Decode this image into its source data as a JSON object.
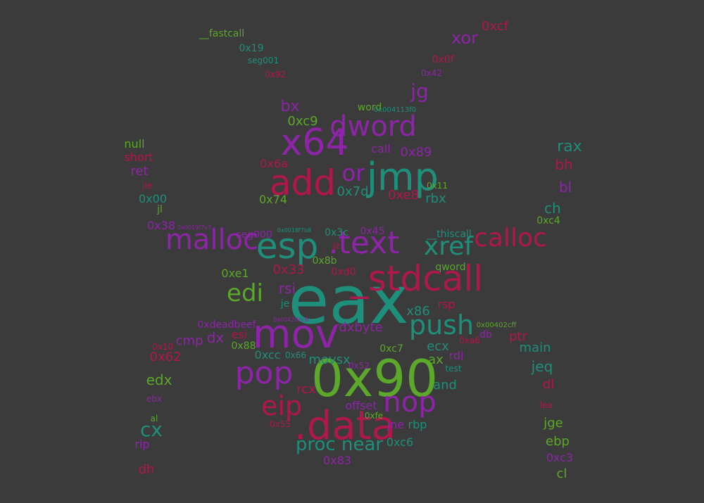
{
  "colors": {
    "background": "#3b3b3b",
    "green": "#5ba82a",
    "teal": "#1e8f7a",
    "purple": "#8e24a8",
    "crimson": "#b0174a"
  },
  "words": [
    {
      "text": "eax",
      "color": "teal"
    },
    {
      "text": "0x90",
      "color": "green"
    },
    {
      "text": "_stdcall",
      "color": "crimson"
    },
    {
      "text": "esp",
      "color": "teal"
    },
    {
      "text": ".text",
      "color": "purple"
    },
    {
      "text": "jmp",
      "color": "teal"
    },
    {
      "text": "mov",
      "color": "purple"
    },
    {
      "text": ".data",
      "color": "crimson"
    },
    {
      "text": "x64",
      "color": "purple"
    },
    {
      "text": "add",
      "color": "crimson"
    },
    {
      "text": "dword",
      "color": "purple"
    },
    {
      "text": "malloc",
      "color": "purple"
    },
    {
      "text": "xref",
      "color": "teal"
    },
    {
      "text": "calloc",
      "color": "crimson"
    },
    {
      "text": "push",
      "color": "teal"
    },
    {
      "text": "pop",
      "color": "purple"
    },
    {
      "text": "nop",
      "color": "purple"
    },
    {
      "text": "eip",
      "color": "crimson"
    },
    {
      "text": "edi",
      "color": "green"
    },
    {
      "text": "or",
      "color": "purple"
    },
    {
      "text": "proc near",
      "color": "teal"
    },
    {
      "text": "rdxbyte",
      "color": "purple"
    },
    {
      "text": "xor",
      "color": "purple"
    },
    {
      "text": "0xcf",
      "color": "crimson"
    },
    {
      "text": "jg",
      "color": "purple"
    },
    {
      "text": "bx",
      "color": "purple"
    },
    {
      "text": "0xc9",
      "color": "green"
    },
    {
      "text": "word",
      "color": "green"
    },
    {
      "text": "0x004113f0",
      "color": "teal"
    },
    {
      "text": "call",
      "color": "purple"
    },
    {
      "text": "0x89",
      "color": "purple"
    },
    {
      "text": "0x6a",
      "color": "crimson"
    },
    {
      "text": "0x7d",
      "color": "teal"
    },
    {
      "text": "0xe8",
      "color": "crimson"
    },
    {
      "text": "0x11",
      "color": "green"
    },
    {
      "text": "rbx",
      "color": "teal"
    },
    {
      "text": "0x74",
      "color": "green"
    },
    {
      "text": "rax",
      "color": "teal"
    },
    {
      "text": "bh",
      "color": "crimson"
    },
    {
      "text": "bl",
      "color": "purple"
    },
    {
      "text": "ch",
      "color": "teal"
    },
    {
      "text": "0xc4",
      "color": "green"
    },
    {
      "text": "null",
      "color": "green"
    },
    {
      "text": "short",
      "color": "crimson"
    },
    {
      "text": "ret",
      "color": "purple"
    },
    {
      "text": "jle",
      "color": "crimson"
    },
    {
      "text": "0x00",
      "color": "teal"
    },
    {
      "text": "jl",
      "color": "green"
    },
    {
      "text": "0x38",
      "color": "purple"
    },
    {
      "text": "0x0019f7e7",
      "color": "purple"
    },
    {
      "text": "seg000",
      "color": "purple"
    },
    {
      "text": "0x0018f7b8",
      "color": "teal"
    },
    {
      "text": "0x3c",
      "color": "teal"
    },
    {
      "text": "0x45",
      "color": "purple"
    },
    {
      "text": "__thiscall",
      "color": "teal"
    },
    {
      "text": "jz",
      "color": "crimson"
    },
    {
      "text": "0x8b",
      "color": "green"
    },
    {
      "text": "0xd0",
      "color": "crimson"
    },
    {
      "text": "qword",
      "color": "green"
    },
    {
      "text": "0xe1",
      "color": "green"
    },
    {
      "text": "0x33",
      "color": "crimson"
    },
    {
      "text": "rsi",
      "color": "purple"
    },
    {
      "text": "je",
      "color": "teal"
    },
    {
      "text": "x86",
      "color": "teal"
    },
    {
      "text": "rsp",
      "color": "crimson"
    },
    {
      "text": "0x00420dc6",
      "color": "purple"
    },
    {
      "text": "0xdeadbeef",
      "color": "purple"
    },
    {
      "text": "esi",
      "color": "crimson"
    },
    {
      "text": "0x00402cff",
      "color": "green"
    },
    {
      "text": "db",
      "color": "purple"
    },
    {
      "text": "ptr",
      "color": "crimson"
    },
    {
      "text": "0xa6",
      "color": "crimson"
    },
    {
      "text": "0x10",
      "color": "crimson"
    },
    {
      "text": "cmp",
      "color": "purple"
    },
    {
      "text": "dx",
      "color": "purple"
    },
    {
      "text": "0x88",
      "color": "green"
    },
    {
      "text": "ecx",
      "color": "teal"
    },
    {
      "text": "main",
      "color": "teal"
    },
    {
      "text": "0x62",
      "color": "crimson"
    },
    {
      "text": "0xcc",
      "color": "teal"
    },
    {
      "text": "0x66",
      "color": "teal"
    },
    {
      "text": "0xc7",
      "color": "green"
    },
    {
      "text": "ax",
      "color": "green"
    },
    {
      "text": "rdi",
      "color": "purple"
    },
    {
      "text": "movsx",
      "color": "teal"
    },
    {
      "text": "test",
      "color": "teal"
    },
    {
      "text": "jeq",
      "color": "teal"
    },
    {
      "text": "0x52",
      "color": "purple"
    },
    {
      "text": "edx",
      "color": "green"
    },
    {
      "text": "and",
      "color": "teal"
    },
    {
      "text": "dl",
      "color": "crimson"
    },
    {
      "text": "rcx",
      "color": "crimson"
    },
    {
      "text": "offset",
      "color": "purple"
    },
    {
      "text": "ebx",
      "color": "purple"
    },
    {
      "text": "0xfe",
      "color": "green"
    },
    {
      "text": "lea",
      "color": "crimson"
    },
    {
      "text": "al",
      "color": "green"
    },
    {
      "text": "cx",
      "color": "teal"
    },
    {
      "text": "0x55",
      "color": "crimson"
    },
    {
      "text": "jne",
      "color": "purple"
    },
    {
      "text": "rbp",
      "color": "teal"
    },
    {
      "text": "jge",
      "color": "green"
    },
    {
      "text": "rip",
      "color": "purple"
    },
    {
      "text": "0xc6",
      "color": "teal"
    },
    {
      "text": "ebp",
      "color": "green"
    },
    {
      "text": "0x83",
      "color": "purple"
    },
    {
      "text": "0xc3",
      "color": "purple"
    },
    {
      "text": "dh",
      "color": "crimson"
    },
    {
      "text": "cl",
      "color": "green"
    },
    {
      "text": "__fastcall",
      "color": "green"
    },
    {
      "text": "0x19",
      "color": "teal"
    },
    {
      "text": "seg001",
      "color": "teal"
    },
    {
      "text": "0x92",
      "color": "crimson"
    },
    {
      "text": "0x0f",
      "color": "crimson"
    },
    {
      "text": "0x42",
      "color": "purple"
    }
  ]
}
